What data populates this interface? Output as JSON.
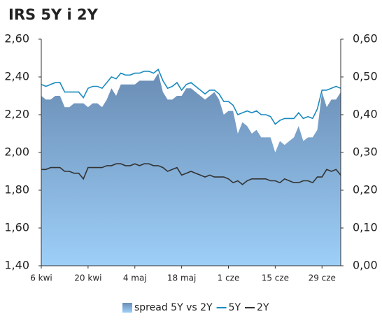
{
  "chart_data": {
    "type": "area-line",
    "title": "IRS 5Y i 2Y",
    "categories": [
      "6 kwi",
      null,
      null,
      null,
      null,
      null,
      null,
      null,
      null,
      null,
      "20 kwi",
      null,
      null,
      null,
      null,
      null,
      null,
      null,
      null,
      null,
      "4 maj",
      null,
      null,
      null,
      null,
      null,
      null,
      null,
      null,
      null,
      "18 maj",
      null,
      null,
      null,
      null,
      null,
      null,
      null,
      null,
      null,
      "1 cze",
      null,
      null,
      null,
      null,
      null,
      null,
      null,
      null,
      null,
      "15 cze",
      null,
      null,
      null,
      null,
      null,
      null,
      null,
      null,
      null,
      "29 cze",
      null,
      null,
      null,
      null
    ],
    "series": [
      {
        "name": "spread 5Y vs 2Y",
        "kind": "area",
        "axis": "y2",
        "color": "#7197c0",
        "values": [
          0.45,
          0.44,
          0.44,
          0.45,
          0.45,
          0.42,
          0.42,
          0.43,
          0.43,
          0.43,
          0.42,
          0.43,
          0.43,
          0.42,
          0.44,
          0.47,
          0.45,
          0.48,
          0.48,
          0.48,
          0.48,
          0.49,
          0.49,
          0.49,
          0.49,
          0.51,
          0.46,
          0.44,
          0.44,
          0.45,
          0.45,
          0.47,
          0.47,
          0.46,
          0.45,
          0.44,
          0.45,
          0.46,
          0.44,
          0.4,
          0.41,
          0.41,
          0.35,
          0.38,
          0.37,
          0.35,
          0.36,
          0.34,
          0.34,
          0.34,
          0.3,
          0.33,
          0.32,
          0.33,
          0.34,
          0.37,
          0.33,
          0.34,
          0.34,
          0.36,
          0.46,
          0.42,
          0.44,
          0.44,
          0.46
        ]
      },
      {
        "name": "5Y",
        "kind": "line",
        "color": "#1a8bbf",
        "values": [
          2.36,
          2.35,
          2.36,
          2.37,
          2.37,
          2.32,
          2.32,
          2.32,
          2.32,
          2.29,
          2.34,
          2.35,
          2.35,
          2.34,
          2.37,
          2.4,
          2.39,
          2.42,
          2.41,
          2.41,
          2.42,
          2.42,
          2.43,
          2.43,
          2.42,
          2.44,
          2.38,
          2.34,
          2.35,
          2.37,
          2.33,
          2.36,
          2.37,
          2.35,
          2.33,
          2.31,
          2.33,
          2.33,
          2.31,
          2.27,
          2.27,
          2.25,
          2.2,
          2.21,
          2.22,
          2.21,
          2.22,
          2.2,
          2.2,
          2.19,
          2.15,
          2.17,
          2.18,
          2.18,
          2.18,
          2.21,
          2.18,
          2.19,
          2.18,
          2.23,
          2.33,
          2.33,
          2.34,
          2.35,
          2.34
        ]
      },
      {
        "name": "2Y",
        "kind": "line",
        "color": "#333333",
        "values": [
          1.91,
          1.91,
          1.92,
          1.92,
          1.92,
          1.9,
          1.9,
          1.89,
          1.89,
          1.86,
          1.92,
          1.92,
          1.92,
          1.92,
          1.93,
          1.93,
          1.94,
          1.94,
          1.93,
          1.93,
          1.94,
          1.93,
          1.94,
          1.94,
          1.93,
          1.93,
          1.92,
          1.9,
          1.91,
          1.92,
          1.88,
          1.89,
          1.9,
          1.89,
          1.88,
          1.87,
          1.88,
          1.87,
          1.87,
          1.87,
          1.86,
          1.84,
          1.85,
          1.83,
          1.85,
          1.86,
          1.86,
          1.86,
          1.86,
          1.85,
          1.85,
          1.84,
          1.86,
          1.85,
          1.84,
          1.84,
          1.85,
          1.85,
          1.84,
          1.87,
          1.87,
          1.91,
          1.9,
          1.91,
          1.88
        ]
      }
    ],
    "ylim": [
      1.4,
      2.6
    ],
    "yticks": [
      {
        "value": 1.4,
        "label": "1,40"
      },
      {
        "value": 1.6,
        "label": "1,60"
      },
      {
        "value": 1.8,
        "label": "1,80"
      },
      {
        "value": 2.0,
        "label": "2,00"
      },
      {
        "value": 2.2,
        "label": "2,20"
      },
      {
        "value": 2.4,
        "label": "2,40"
      },
      {
        "value": 2.6,
        "label": "2,60"
      }
    ],
    "y2lim": [
      0,
      0.6
    ],
    "y2ticks": [
      {
        "value": 0,
        "label": "0,00"
      },
      {
        "value": 0.1,
        "label": "0,10"
      },
      {
        "value": 0.2,
        "label": "0,20"
      },
      {
        "value": 0.3,
        "label": "0,30"
      },
      {
        "value": 0.4,
        "label": "0,40"
      },
      {
        "value": 0.5,
        "label": "0,50"
      },
      {
        "value": 0.6,
        "label": "0,60"
      }
    ],
    "grid": false,
    "legend": "bottom"
  }
}
